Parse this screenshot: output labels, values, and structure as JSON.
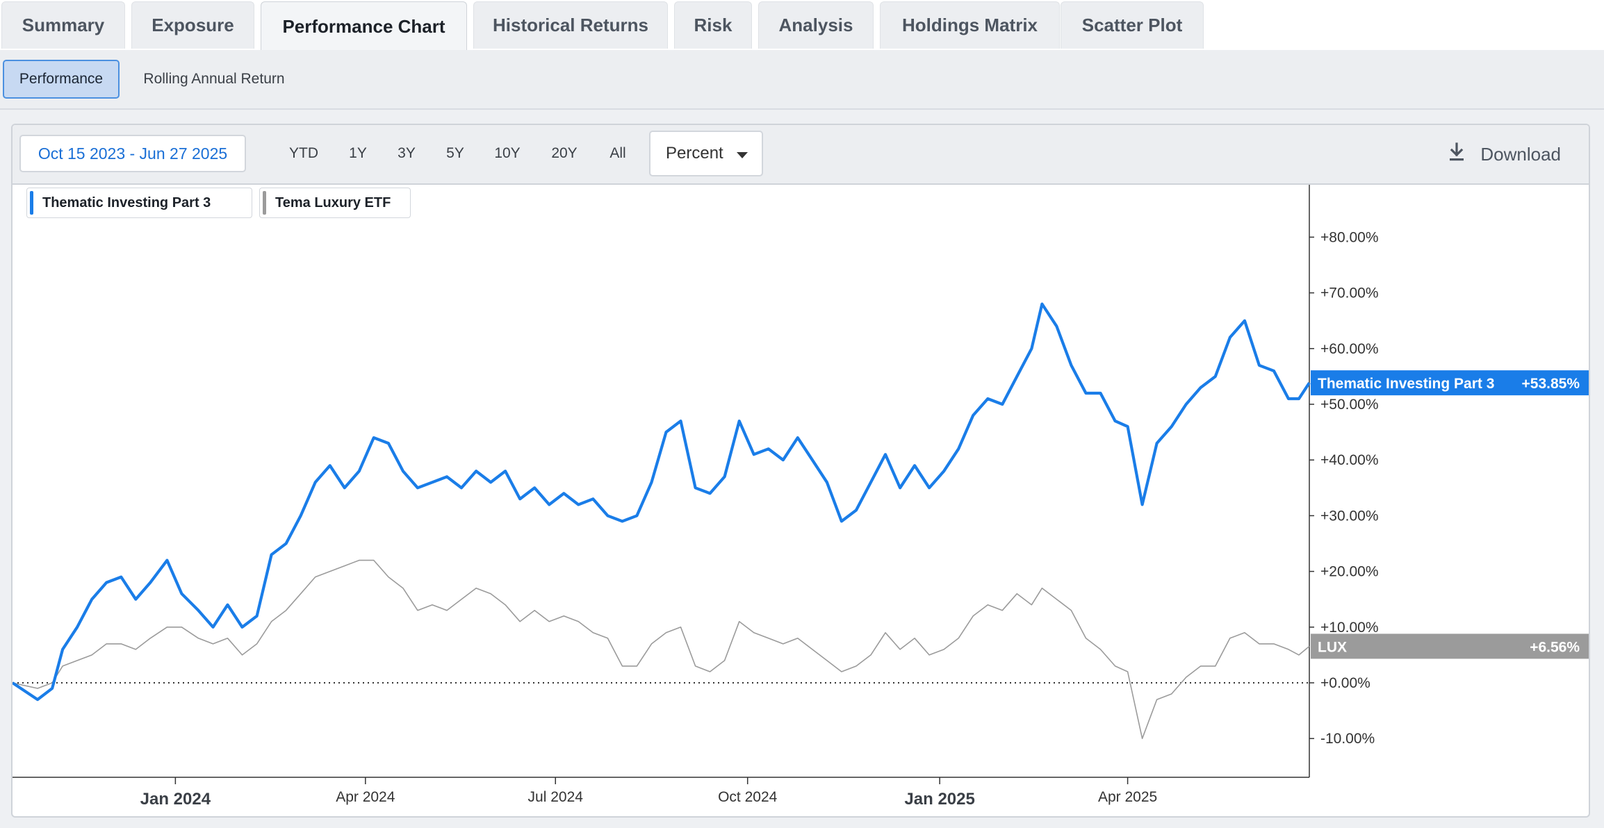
{
  "tabs": [
    {
      "label": "Summary",
      "active": false
    },
    {
      "label": "Exposure",
      "active": false
    },
    {
      "label": "Performance Chart",
      "active": true
    },
    {
      "label": "Historical Returns",
      "active": false
    },
    {
      "label": "Risk",
      "active": false
    },
    {
      "label": "Analysis",
      "active": false
    },
    {
      "label": "Holdings Matrix",
      "active": false
    },
    {
      "label": "Scatter Plot",
      "active": false
    }
  ],
  "subtabs": [
    {
      "label": "Performance",
      "active": true
    },
    {
      "label": "Rolling Annual Return",
      "active": false
    }
  ],
  "toolbar": {
    "date_range": "Oct 15 2023 - Jun 27 2025",
    "ranges": [
      "YTD",
      "1Y",
      "3Y",
      "5Y",
      "10Y",
      "20Y",
      "All"
    ],
    "unit": "Percent",
    "download_label": "Download",
    "download_icon": "download-icon",
    "dropdown_icon": "caret-down-icon"
  },
  "colors": {
    "series1": "#1a7de8",
    "series2": "#9b9b9b"
  },
  "chart_data": {
    "type": "line",
    "y_unit": "percent",
    "ylim": [
      -15,
      88
    ],
    "x_range": [
      "2023-10-15",
      "2025-06-27"
    ],
    "y_ticks": [
      "-10.00%",
      "+0.00%",
      "+10.00%",
      "+20.00%",
      "+30.00%",
      "+40.00%",
      "+50.00%",
      "+60.00%",
      "+70.00%",
      "+80.00%"
    ],
    "y_tick_values": [
      -10,
      0,
      10,
      20,
      30,
      40,
      50,
      60,
      70,
      80
    ],
    "x_ticks": [
      {
        "label": "Jan 2024",
        "date": "2024-01-01",
        "bold": true
      },
      {
        "label": "Apr 2024",
        "date": "2024-04-01",
        "bold": false
      },
      {
        "label": "Jul 2024",
        "date": "2024-07-01",
        "bold": false
      },
      {
        "label": "Oct 2024",
        "date": "2024-10-01",
        "bold": false
      },
      {
        "label": "Jan 2025",
        "date": "2025-01-01",
        "bold": true
      },
      {
        "label": "Apr 2025",
        "date": "2025-04-01",
        "bold": false
      }
    ],
    "zero_line": true,
    "series": [
      {
        "name": "Thematic Investing Part 3",
        "tag": "Thematic Investing Part 3",
        "last_value_label": "+53.85%",
        "points": [
          [
            "2023-10-15",
            0
          ],
          [
            "2023-10-27",
            -3
          ],
          [
            "2023-11-03",
            -1
          ],
          [
            "2023-11-08",
            6
          ],
          [
            "2023-11-15",
            10
          ],
          [
            "2023-11-22",
            15
          ],
          [
            "2023-11-29",
            18
          ],
          [
            "2023-12-06",
            19
          ],
          [
            "2023-12-13",
            15
          ],
          [
            "2023-12-20",
            18
          ],
          [
            "2023-12-28",
            22
          ],
          [
            "2024-01-04",
            16
          ],
          [
            "2024-01-12",
            13
          ],
          [
            "2024-01-19",
            10
          ],
          [
            "2024-01-26",
            14
          ],
          [
            "2024-02-02",
            10
          ],
          [
            "2024-02-09",
            12
          ],
          [
            "2024-02-16",
            23
          ],
          [
            "2024-02-23",
            25
          ],
          [
            "2024-03-01",
            30
          ],
          [
            "2024-03-08",
            36
          ],
          [
            "2024-03-15",
            39
          ],
          [
            "2024-03-22",
            35
          ],
          [
            "2024-03-29",
            38
          ],
          [
            "2024-04-05",
            44
          ],
          [
            "2024-04-12",
            43
          ],
          [
            "2024-04-19",
            38
          ],
          [
            "2024-04-26",
            35
          ],
          [
            "2024-05-03",
            36
          ],
          [
            "2024-05-10",
            37
          ],
          [
            "2024-05-17",
            35
          ],
          [
            "2024-05-24",
            38
          ],
          [
            "2024-05-31",
            36
          ],
          [
            "2024-06-07",
            38
          ],
          [
            "2024-06-14",
            33
          ],
          [
            "2024-06-21",
            35
          ],
          [
            "2024-06-28",
            32
          ],
          [
            "2024-07-05",
            34
          ],
          [
            "2024-07-12",
            32
          ],
          [
            "2024-07-19",
            33
          ],
          [
            "2024-07-26",
            30
          ],
          [
            "2024-08-02",
            29
          ],
          [
            "2024-08-09",
            30
          ],
          [
            "2024-08-16",
            36
          ],
          [
            "2024-08-23",
            45
          ],
          [
            "2024-08-30",
            47
          ],
          [
            "2024-09-06",
            35
          ],
          [
            "2024-09-13",
            34
          ],
          [
            "2024-09-20",
            37
          ],
          [
            "2024-09-27",
            47
          ],
          [
            "2024-10-04",
            41
          ],
          [
            "2024-10-11",
            42
          ],
          [
            "2024-10-18",
            40
          ],
          [
            "2024-10-25",
            44
          ],
          [
            "2024-11-01",
            40
          ],
          [
            "2024-11-08",
            36
          ],
          [
            "2024-11-15",
            29
          ],
          [
            "2024-11-22",
            31
          ],
          [
            "2024-11-29",
            36
          ],
          [
            "2024-12-06",
            41
          ],
          [
            "2024-12-13",
            35
          ],
          [
            "2024-12-20",
            39
          ],
          [
            "2024-12-27",
            35
          ],
          [
            "2025-01-03",
            38
          ],
          [
            "2025-01-10",
            42
          ],
          [
            "2025-01-17",
            48
          ],
          [
            "2025-01-24",
            51
          ],
          [
            "2025-01-31",
            50
          ],
          [
            "2025-02-07",
            55
          ],
          [
            "2025-02-14",
            60
          ],
          [
            "2025-02-19",
            68
          ],
          [
            "2025-02-26",
            64
          ],
          [
            "2025-03-05",
            57
          ],
          [
            "2025-03-12",
            52
          ],
          [
            "2025-03-19",
            52
          ],
          [
            "2025-03-26",
            47
          ],
          [
            "2025-04-01",
            46
          ],
          [
            "2025-04-08",
            32
          ],
          [
            "2025-04-15",
            43
          ],
          [
            "2025-04-22",
            46
          ],
          [
            "2025-04-29",
            50
          ],
          [
            "2025-05-06",
            53
          ],
          [
            "2025-05-13",
            55
          ],
          [
            "2025-05-20",
            62
          ],
          [
            "2025-05-27",
            65
          ],
          [
            "2025-06-03",
            57
          ],
          [
            "2025-06-10",
            56
          ],
          [
            "2025-06-17",
            51
          ],
          [
            "2025-06-22",
            51
          ],
          [
            "2025-06-27",
            53.85
          ]
        ]
      },
      {
        "name": "Tema Luxury ETF",
        "tag": "LUX",
        "last_value_label": "+6.56%",
        "points": [
          [
            "2023-10-15",
            0
          ],
          [
            "2023-10-27",
            -1
          ],
          [
            "2023-11-03",
            0
          ],
          [
            "2023-11-08",
            3
          ],
          [
            "2023-11-15",
            4
          ],
          [
            "2023-11-22",
            5
          ],
          [
            "2023-11-29",
            7
          ],
          [
            "2023-12-06",
            7
          ],
          [
            "2023-12-13",
            6
          ],
          [
            "2023-12-20",
            8
          ],
          [
            "2023-12-28",
            10
          ],
          [
            "2024-01-04",
            10
          ],
          [
            "2024-01-12",
            8
          ],
          [
            "2024-01-19",
            7
          ],
          [
            "2024-01-26",
            8
          ],
          [
            "2024-02-02",
            5
          ],
          [
            "2024-02-09",
            7
          ],
          [
            "2024-02-16",
            11
          ],
          [
            "2024-02-23",
            13
          ],
          [
            "2024-03-01",
            16
          ],
          [
            "2024-03-08",
            19
          ],
          [
            "2024-03-15",
            20
          ],
          [
            "2024-03-22",
            21
          ],
          [
            "2024-03-29",
            22
          ],
          [
            "2024-04-05",
            22
          ],
          [
            "2024-04-12",
            19
          ],
          [
            "2024-04-19",
            17
          ],
          [
            "2024-04-26",
            13
          ],
          [
            "2024-05-03",
            14
          ],
          [
            "2024-05-10",
            13
          ],
          [
            "2024-05-17",
            15
          ],
          [
            "2024-05-24",
            17
          ],
          [
            "2024-05-31",
            16
          ],
          [
            "2024-06-07",
            14
          ],
          [
            "2024-06-14",
            11
          ],
          [
            "2024-06-21",
            13
          ],
          [
            "2024-06-28",
            11
          ],
          [
            "2024-07-05",
            12
          ],
          [
            "2024-07-12",
            11
          ],
          [
            "2024-07-19",
            9
          ],
          [
            "2024-07-26",
            8
          ],
          [
            "2024-08-02",
            3
          ],
          [
            "2024-08-09",
            3
          ],
          [
            "2024-08-16",
            7
          ],
          [
            "2024-08-23",
            9
          ],
          [
            "2024-08-30",
            10
          ],
          [
            "2024-09-06",
            3
          ],
          [
            "2024-09-13",
            2
          ],
          [
            "2024-09-20",
            4
          ],
          [
            "2024-09-27",
            11
          ],
          [
            "2024-10-04",
            9
          ],
          [
            "2024-10-11",
            8
          ],
          [
            "2024-10-18",
            7
          ],
          [
            "2024-10-25",
            8
          ],
          [
            "2024-11-01",
            6
          ],
          [
            "2024-11-08",
            4
          ],
          [
            "2024-11-15",
            2
          ],
          [
            "2024-11-22",
            3
          ],
          [
            "2024-11-29",
            5
          ],
          [
            "2024-12-06",
            9
          ],
          [
            "2024-12-13",
            6
          ],
          [
            "2024-12-20",
            8
          ],
          [
            "2024-12-27",
            5
          ],
          [
            "2025-01-03",
            6
          ],
          [
            "2025-01-10",
            8
          ],
          [
            "2025-01-17",
            12
          ],
          [
            "2025-01-24",
            14
          ],
          [
            "2025-01-31",
            13
          ],
          [
            "2025-02-07",
            16
          ],
          [
            "2025-02-14",
            14
          ],
          [
            "2025-02-19",
            17
          ],
          [
            "2025-02-26",
            15
          ],
          [
            "2025-03-05",
            13
          ],
          [
            "2025-03-12",
            8
          ],
          [
            "2025-03-19",
            6
          ],
          [
            "2025-03-26",
            3
          ],
          [
            "2025-04-01",
            2
          ],
          [
            "2025-04-08",
            -10
          ],
          [
            "2025-04-15",
            -3
          ],
          [
            "2025-04-22",
            -2
          ],
          [
            "2025-04-29",
            1
          ],
          [
            "2025-05-06",
            3
          ],
          [
            "2025-05-13",
            3
          ],
          [
            "2025-05-20",
            8
          ],
          [
            "2025-05-27",
            9
          ],
          [
            "2025-06-03",
            7
          ],
          [
            "2025-06-10",
            7
          ],
          [
            "2025-06-17",
            6
          ],
          [
            "2025-06-22",
            5
          ],
          [
            "2025-06-27",
            6.56
          ]
        ]
      }
    ]
  }
}
